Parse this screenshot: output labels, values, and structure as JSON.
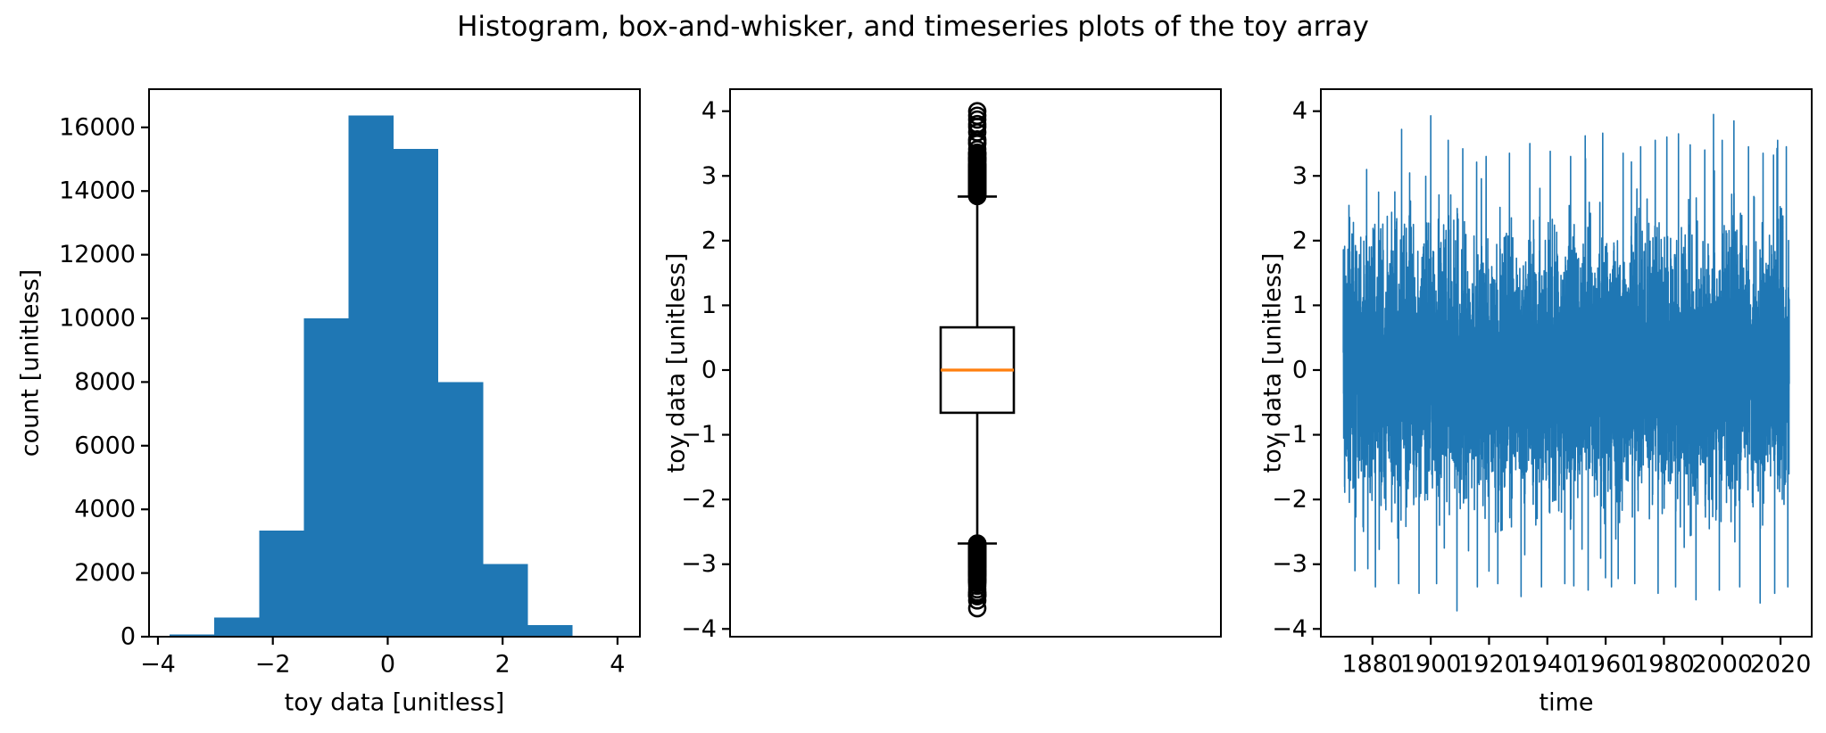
{
  "figure": {
    "title": "Histogram, box-and-whisker, and timeseries plots of the toy array",
    "background_color": "#ffffff",
    "text_color": "#000000",
    "accent_blue": "#1f77b4",
    "median_orange": "#ff7f0e"
  },
  "chart_data": [
    {
      "type": "bar",
      "variant": "histogram",
      "title": "",
      "xlabel": "toy data [unitless]",
      "ylabel": "count [unitless]",
      "xlim": [
        -4.155,
        4.39
      ],
      "ylim": [
        0,
        17200
      ],
      "xticks": [
        -4,
        -2,
        0,
        2,
        4
      ],
      "yticks": [
        0,
        2000,
        4000,
        6000,
        8000,
        10000,
        12000,
        14000,
        16000
      ],
      "grid": false,
      "legend": false,
      "bar_color": "#1f77b4",
      "bin_start": -3.8,
      "bin_width": 0.78,
      "counts": [
        70,
        600,
        3330,
        10000,
        16370,
        15330,
        8000,
        2280,
        370,
        20
      ]
    },
    {
      "type": "boxplot",
      "title": "",
      "xlabel": "",
      "ylabel": "toy data [unitless]",
      "ylim": [
        -4.12,
        4.34
      ],
      "yticks": [
        -4,
        -3,
        -2,
        -1,
        0,
        1,
        2,
        3,
        4
      ],
      "grid": false,
      "box_color": "#000000",
      "median_color": "#ff7f0e",
      "stats": {
        "median": 0.0,
        "q1": -0.66,
        "q3": 0.66,
        "whisker_low": -2.68,
        "whisker_high": 2.68,
        "outlier_cluster_high": [
          2.68,
          3.76
        ],
        "outlier_points_high": [
          3.8,
          3.87,
          3.93,
          4.0
        ],
        "outlier_cluster_low": [
          -3.5,
          -2.68
        ],
        "outlier_points_low": [
          -3.56,
          -3.68
        ]
      }
    },
    {
      "type": "line",
      "variant": "timeseries",
      "title": "",
      "xlabel": "time",
      "ylabel": "toy data [unitless]",
      "xlim": [
        1862.3,
        2030.7
      ],
      "ylim": [
        -4.12,
        4.34
      ],
      "xticks": [
        1880,
        1900,
        1920,
        1940,
        1960,
        1980,
        2000,
        2020
      ],
      "yticks": [
        -4,
        -3,
        -2,
        -1,
        0,
        1,
        2,
        3,
        4
      ],
      "grid": false,
      "line_color": "#1f77b4",
      "series": {
        "name": "toy data",
        "x_start": 1870,
        "x_end": 2023,
        "mean": 0.0,
        "std": 1.0,
        "observed_min": -3.72,
        "observed_max": 3.95,
        "peaks": [
          [
            1878,
            3.1
          ],
          [
            1890,
            3.72
          ],
          [
            1900,
            3.93
          ],
          [
            1906,
            3.55
          ],
          [
            1911,
            3.42
          ],
          [
            1919,
            3.3
          ],
          [
            1927,
            3.35
          ],
          [
            1934,
            3.5
          ],
          [
            1941,
            3.38
          ],
          [
            1948,
            3.3
          ],
          [
            1953,
            3.62
          ],
          [
            1959,
            3.66
          ],
          [
            1966,
            3.35
          ],
          [
            1972,
            3.45
          ],
          [
            1977,
            3.55
          ],
          [
            1981,
            3.6
          ],
          [
            1985,
            3.65
          ],
          [
            1989,
            3.48
          ],
          [
            1994,
            3.4
          ],
          [
            1997,
            3.95
          ],
          [
            2000,
            3.55
          ],
          [
            2004,
            3.85
          ],
          [
            2009,
            3.45
          ],
          [
            2014,
            3.35
          ],
          [
            2019,
            3.55
          ],
          [
            2022,
            3.45
          ]
        ],
        "troughs": [
          [
            1874,
            -3.1
          ],
          [
            1881,
            -3.35
          ],
          [
            1889,
            -3.3
          ],
          [
            1896,
            -3.45
          ],
          [
            1902,
            -3.3
          ],
          [
            1909,
            -3.72
          ],
          [
            1916,
            -3.35
          ],
          [
            1923,
            -3.3
          ],
          [
            1931,
            -3.5
          ],
          [
            1938,
            -3.35
          ],
          [
            1946,
            -3.3
          ],
          [
            1954,
            -3.4
          ],
          [
            1962,
            -3.35
          ],
          [
            1970,
            -3.3
          ],
          [
            1978,
            -3.45
          ],
          [
            1984,
            -3.35
          ],
          [
            1991,
            -3.55
          ],
          [
            1999,
            -3.4
          ],
          [
            2006,
            -3.35
          ],
          [
            2013,
            -3.6
          ],
          [
            2018,
            -3.45
          ],
          [
            2022.5,
            -3.35
          ]
        ]
      }
    }
  ]
}
